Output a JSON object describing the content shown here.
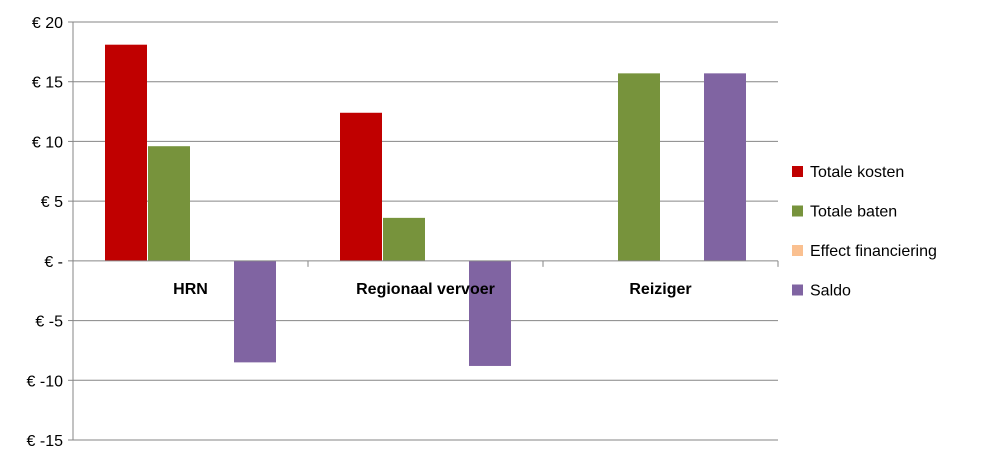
{
  "chart_data": {
    "type": "bar",
    "title": "",
    "xlabel": "",
    "ylabel": "",
    "categories": [
      "HRN",
      "Regionaal vervoer",
      "Reiziger"
    ],
    "series": [
      {
        "name": "Totale kosten",
        "color": "#C00000",
        "values": [
          18.1,
          12.4,
          0
        ]
      },
      {
        "name": "Totale baten",
        "color": "#77933C",
        "values": [
          9.6,
          3.6,
          15.7
        ]
      },
      {
        "name": "Effect financiering",
        "color": "#FAC090",
        "values": [
          0,
          0,
          0
        ]
      },
      {
        "name": "Saldo",
        "color": "#8064A2",
        "values": [
          -8.5,
          -8.8,
          15.7
        ]
      }
    ],
    "ylim": [
      -15,
      20
    ],
    "yticks": [
      20,
      15,
      10,
      5,
      0,
      -5,
      -10,
      -15
    ],
    "ytick_labels": [
      "€ 20",
      "€ 15",
      "€ 10",
      "€ 5",
      "€ -",
      "€ -5",
      "€ -10",
      "€ -15"
    ],
    "grid": true,
    "legend_position": "right"
  }
}
